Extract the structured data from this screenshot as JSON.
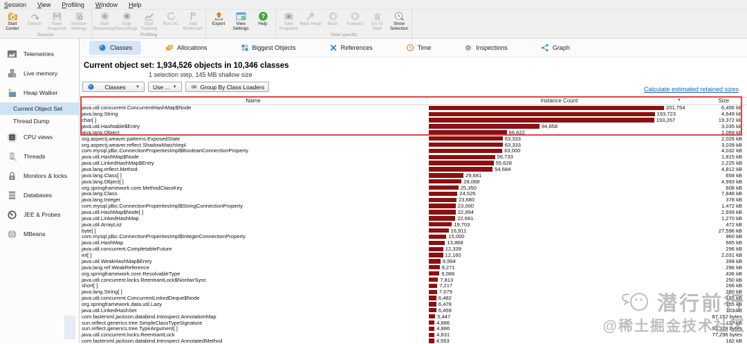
{
  "window": {
    "menu_items": [
      "Session",
      "View",
      "Profiling",
      "Window",
      "Help"
    ]
  },
  "toolbar": {
    "groups": [
      {
        "label": "Session",
        "buttons": [
          {
            "label": "Start Center",
            "icon": "start-center",
            "enabled": true
          },
          {
            "label": "Detach",
            "icon": "detach",
            "enabled": false
          },
          {
            "label": "Save Snapshot",
            "icon": "save-snapshot",
            "enabled": false
          },
          {
            "label": "Session Settings",
            "icon": "session-settings",
            "enabled": false
          }
        ]
      },
      {
        "label": "Profiling",
        "buttons": [
          {
            "label": "Start Recordings",
            "icon": "start-recordings",
            "enabled": false
          },
          {
            "label": "Stop Recordings",
            "icon": "stop-recordings",
            "enabled": false
          },
          {
            "label": "Start Tracking",
            "icon": "start-tracking",
            "enabled": false
          },
          {
            "label": "Run GC",
            "icon": "run-gc",
            "enabled": false
          },
          {
            "label": "Add Bookmark",
            "icon": "add-bookmark",
            "enabled": false
          }
        ]
      },
      {
        "label": "",
        "buttons": [
          {
            "label": "Export",
            "icon": "export",
            "enabled": true
          },
          {
            "label": "View Settings",
            "icon": "view-settings",
            "enabled": true
          },
          {
            "label": "Help",
            "icon": "help",
            "enabled": true
          }
        ]
      },
      {
        "label": "View specific",
        "buttons": [
          {
            "label": "Take Snapshot",
            "icon": "take-snapshot",
            "enabled": false
          },
          {
            "label": "Mark Heap",
            "icon": "mark-heap",
            "enabled": false
          },
          {
            "label": "Back",
            "icon": "back",
            "enabled": false
          },
          {
            "label": "Forward",
            "icon": "forward",
            "enabled": false
          },
          {
            "label": "Go To Start",
            "icon": "go-to-start",
            "enabled": false
          },
          {
            "label": "Show Selection",
            "icon": "show-selection",
            "enabled": true
          }
        ]
      }
    ]
  },
  "sidebar": {
    "items": [
      {
        "label": "Telemetries",
        "icon": "telemetries",
        "sub": false,
        "selected": false
      },
      {
        "label": "Live memory",
        "icon": "live-memory",
        "sub": false,
        "selected": false
      },
      {
        "label": "Heap Walker",
        "icon": "heap-walker",
        "sub": false,
        "selected": false
      },
      {
        "label": "Current Object Set",
        "icon": "",
        "sub": true,
        "selected": true
      },
      {
        "label": "Thread Dump",
        "icon": "",
        "sub": true,
        "selected": false
      },
      {
        "label": "CPU views",
        "icon": "cpu-views",
        "sub": false,
        "selected": false
      },
      {
        "label": "Threads",
        "icon": "threads",
        "sub": false,
        "selected": false
      },
      {
        "label": "Monitors & locks",
        "icon": "monitors-locks",
        "sub": false,
        "selected": false
      },
      {
        "label": "Databases",
        "icon": "databases",
        "sub": false,
        "selected": false
      },
      {
        "label": "JEE & Probes",
        "icon": "jee-probes",
        "sub": false,
        "selected": false
      },
      {
        "label": "MBeans",
        "icon": "mbeans",
        "sub": false,
        "selected": false
      }
    ]
  },
  "tabs": [
    {
      "label": "Classes",
      "icon": "classes",
      "selected": true
    },
    {
      "label": "Allocations",
      "icon": "allocations",
      "selected": false
    },
    {
      "label": "Biggest Objects",
      "icon": "biggest-objects",
      "selected": false
    },
    {
      "label": "References",
      "icon": "references",
      "selected": false
    },
    {
      "label": "Time",
      "icon": "time",
      "selected": false
    },
    {
      "label": "Inspections",
      "icon": "inspections",
      "selected": false
    },
    {
      "label": "Graph",
      "icon": "graph",
      "selected": false
    }
  ],
  "summary": {
    "title_label": "Current object set:",
    "title_value": "1,934,526 objects in 10,346 classes",
    "subtitle": "1 selection step, 145 MB shallow size",
    "retained_link": "Calculate estimated retained sizes"
  },
  "controls": {
    "view_mode": "Classes",
    "use_label": "Use ...",
    "group_by_label": "Group By Class Loaders"
  },
  "table": {
    "columns": [
      "Name",
      "Instance Count",
      "Size"
    ],
    "sort_column": "Instance Count",
    "max_count": 201754,
    "rows": [
      {
        "name": "java.util.concurrent.ConcurrentHashMap$Node",
        "count": "201,754",
        "count_num": 201754,
        "size": "6,456 kB"
      },
      {
        "name": "java.lang.String",
        "count": "193,723",
        "count_num": 193723,
        "size": "4,649 kB"
      },
      {
        "name": "char[ ]",
        "count": "193,267",
        "count_num": 193267,
        "size": "19,372 kB"
      },
      {
        "name": "java.util.Hashtable$Entry",
        "count": "94,858",
        "count_num": 94858,
        "size": "3,035 kB"
      },
      {
        "name": "java.lang.Object",
        "count": "66,822",
        "count_num": 66822,
        "size": "1,069 kB"
      },
      {
        "name": "org.aspectj.weaver.patterns.ExposedState",
        "count": "63,333",
        "count_num": 63333,
        "size": "2,026 kB"
      },
      {
        "name": "org.aspectj.weaver.reflect.ShadowMatchImpl",
        "count": "63,333",
        "count_num": 63333,
        "size": "3,039 kB"
      },
      {
        "name": "com.mysql.jdbc.ConnectionPropertiesImpl$BooleanConnectionProperty",
        "count": "63,000",
        "count_num": 63000,
        "size": "4,032 kB"
      },
      {
        "name": "java.util.HashMap$Node",
        "count": "56,733",
        "count_num": 56733,
        "size": "1,815 kB"
      },
      {
        "name": "java.util.LinkedHashMap$Entry",
        "count": "55,628",
        "count_num": 55628,
        "size": "2,225 kB"
      },
      {
        "name": "java.lang.reflect.Method",
        "count": "54,684",
        "count_num": 54684,
        "size": "4,812 kB"
      },
      {
        "name": "java.lang.Class[ ]",
        "count": "29,681",
        "count_num": 29681,
        "size": "658 kB"
      },
      {
        "name": "java.lang.Object[ ]",
        "count": "28,068",
        "count_num": 28068,
        "size": "4,993 kB"
      },
      {
        "name": "org.springframework.core.MethodClassKey",
        "count": "25,350",
        "count_num": 25350,
        "size": "608 kB"
      },
      {
        "name": "java.lang.Class",
        "count": "24,526",
        "count_num": 24526,
        "size": "7,848 kB"
      },
      {
        "name": "java.lang.Integer",
        "count": "23,680",
        "count_num": 23680,
        "size": "378 kB"
      },
      {
        "name": "com.mysql.jdbc.ConnectionPropertiesImpl$StringConnectionProperty",
        "count": "23,000",
        "count_num": 23000,
        "size": "1,472 kB"
      },
      {
        "name": "java.util.HashMap$Node[ ]",
        "count": "22,994",
        "count_num": 22994,
        "size": "2,939 kB"
      },
      {
        "name": "java.util.LinkedHashMap",
        "count": "22,681",
        "count_num": 22681,
        "size": "1,270 kB"
      },
      {
        "name": "java.util.ArrayList",
        "count": "19,703",
        "count_num": 19703,
        "size": "472 kB"
      },
      {
        "name": "byte[ ]",
        "count": "16,911",
        "count_num": 16911,
        "size": "27,596 kB"
      },
      {
        "name": "com.mysql.jdbc.ConnectionPropertiesImpl$IntegerConnectionProperty",
        "count": "15,000",
        "count_num": 15000,
        "size": "960 kB"
      },
      {
        "name": "java.util.HashMap",
        "count": "13,868",
        "count_num": 13868,
        "size": "665 kB"
      },
      {
        "name": "java.util.concurrent.CompletableFuture",
        "count": "12,339",
        "count_num": 12339,
        "size": "296 kB"
      },
      {
        "name": "int[ ]",
        "count": "12,160",
        "count_num": 12160,
        "size": "2,031 kB"
      },
      {
        "name": "java.util.WeakHashMap$Entry",
        "count": "9,994",
        "count_num": 9994,
        "size": "399 kB"
      },
      {
        "name": "java.lang.ref.WeakReference",
        "count": "9,271",
        "count_num": 9271,
        "size": "296 kB"
      },
      {
        "name": "org.springframework.core.ResolvableType",
        "count": "9,086",
        "count_num": 9086,
        "size": "436 kB"
      },
      {
        "name": "java.util.concurrent.locks.ReentrantLock$NonfairSync",
        "count": "7,813",
        "count_num": 7813,
        "size": "250 kB"
      },
      {
        "name": "short[ ]",
        "count": "7,217",
        "count_num": 7217,
        "size": "266 kB"
      },
      {
        "name": "java.lang.String[ ]",
        "count": "7,079",
        "count_num": 7079,
        "size": "280 kB"
      },
      {
        "name": "java.util.concurrent.ConcurrentLinkedDeque$Node",
        "count": "6,482",
        "count_num": 6482,
        "size": "155 kB"
      },
      {
        "name": "org.springframework.data.util.Lazy",
        "count": "6,478",
        "count_num": 6478,
        "size": "155 kB"
      },
      {
        "name": "java.util.LinkedHashSet",
        "count": "6,459",
        "count_num": 6459,
        "size": "103 kB"
      },
      {
        "name": "com.fasterxml.jackson.databind.introspect.AnnotationMap",
        "count": "5,447",
        "count_num": 5447,
        "size": "87,152 bytes"
      },
      {
        "name": "sun.reflect.generics.tree.SimpleClassTypeSignature",
        "count": "4,886",
        "count_num": 4886,
        "size": "117 kB"
      },
      {
        "name": "sun.reflect.generics.tree.TypeArgument[ ]",
        "count": "4,886",
        "count_num": 4886,
        "size": "92,328 bytes"
      },
      {
        "name": "java.util.concurrent.locks.ReentrantLock",
        "count": "4,831",
        "count_num": 4831,
        "size": "77,296 bytes"
      },
      {
        "name": "com.fasterxml.jackson.databind.introspect.AnnotatedMethod",
        "count": "4,553",
        "count_num": 4553,
        "size": "182 kB"
      }
    ]
  },
  "watermark": {
    "line1": "潜行前行",
    "line2": "@稀土掘金技术社区"
  },
  "colors": {
    "bar": "#8b1111",
    "highlight": "#e14343",
    "link": "#1464c0",
    "tab_selected_bg": "#d6e6f5",
    "sidebar_selected_bg": "#cfe3f6"
  }
}
